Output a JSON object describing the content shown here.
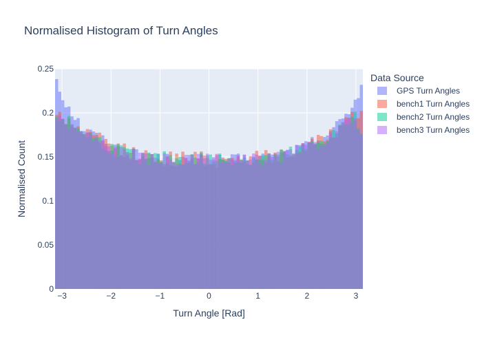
{
  "chart_data": {
    "type": "bar",
    "title": "Normalised Histogram of Turn Angles",
    "xlabel": "Turn Angle [Rad]",
    "ylabel": "Normalised Count",
    "xlim": [
      -3.1416,
      3.1416
    ],
    "ylim": [
      0,
      0.25
    ],
    "x_ticks": [
      -3,
      -2,
      -1,
      0,
      1,
      2,
      3
    ],
    "x_tick_labels": [
      "−3",
      "−2",
      "−1",
      "0",
      "1",
      "2",
      "3"
    ],
    "y_ticks": [
      0,
      0.05,
      0.1,
      0.15,
      0.2,
      0.25
    ],
    "y_tick_labels": [
      "0",
      "0.05",
      "0.1",
      "0.15",
      "0.2",
      "0.25"
    ],
    "bins": 100,
    "bar_mode": "overlay",
    "grid": true,
    "legend_title": "Data Source",
    "legend_position": "right",
    "series": [
      {
        "name": "GPS Turn Angles",
        "color": "#636efa",
        "anchors_x": [
          -3.14,
          -3.0,
          -2.6,
          -2.0,
          -1.4,
          -0.8,
          0,
          0.8,
          1.4,
          2.0,
          2.6,
          3.0,
          3.14
        ],
        "anchors_y": [
          0.245,
          0.22,
          0.184,
          0.162,
          0.15,
          0.146,
          0.145,
          0.146,
          0.15,
          0.162,
          0.184,
          0.215,
          0.235
        ]
      },
      {
        "name": "bench1 Turn Angles",
        "color": "#EF553B",
        "anchors_x": [
          -3.14,
          -3.0,
          -2.6,
          -2.0,
          -1.4,
          -0.8,
          0,
          0.8,
          1.4,
          2.0,
          2.6,
          3.0,
          3.14
        ],
        "anchors_y": [
          0.2,
          0.196,
          0.18,
          0.163,
          0.152,
          0.149,
          0.149,
          0.149,
          0.152,
          0.162,
          0.178,
          0.197,
          0.2
        ]
      },
      {
        "name": "bench2 Turn Angles",
        "color": "#00cc96",
        "anchors_x": [
          -3.14,
          -3.0,
          -2.6,
          -2.0,
          -1.4,
          -0.8,
          0,
          0.8,
          1.4,
          2.0,
          2.6,
          3.0,
          3.14
        ],
        "anchors_y": [
          0.198,
          0.194,
          0.18,
          0.16,
          0.15,
          0.148,
          0.148,
          0.148,
          0.15,
          0.16,
          0.178,
          0.196,
          0.165
        ]
      },
      {
        "name": "bench3 Turn Angles",
        "color": "#ab63fa",
        "anchors_x": [
          -3.14,
          -3.0,
          -2.6,
          -2.0,
          -1.4,
          -0.8,
          0,
          0.8,
          1.4,
          2.0,
          2.6,
          3.0,
          3.14
        ],
        "anchors_y": [
          0.196,
          0.192,
          0.178,
          0.16,
          0.149,
          0.146,
          0.146,
          0.146,
          0.149,
          0.16,
          0.176,
          0.194,
          0.162
        ]
      }
    ]
  }
}
